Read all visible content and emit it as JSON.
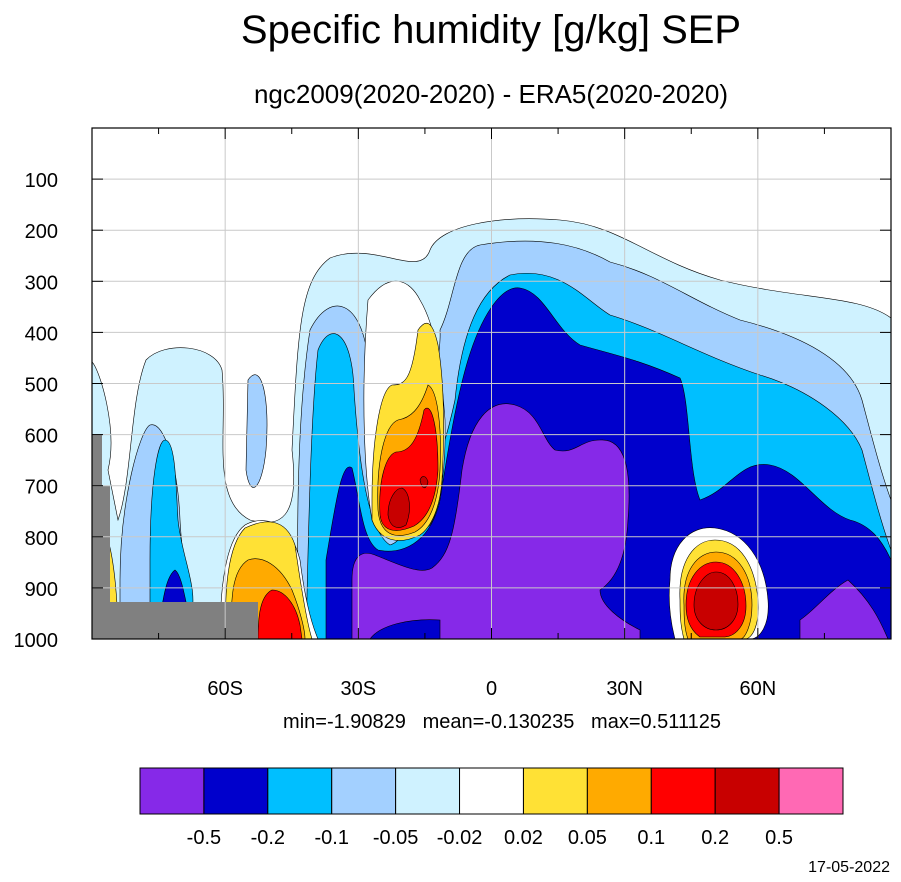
{
  "chart_data": {
    "type": "contour",
    "title": "Specific humidity [g/kg] SEP",
    "subtitle": "ngc2009(2020-2020) - ERA5(2020-2020)",
    "stats": "min=-1.90829   mean=-0.130235   max=0.511125",
    "date": "17-05-2022",
    "xlim": [
      -90,
      90
    ],
    "ylim": [
      1000,
      0
    ],
    "x_ticks": [
      {
        "value": -60,
        "label": "60S"
      },
      {
        "value": -30,
        "label": "30S"
      },
      {
        "value": 0,
        "label": "0"
      },
      {
        "value": 30,
        "label": "30N"
      },
      {
        "value": 60,
        "label": "60N"
      }
    ],
    "y_ticks": [
      {
        "value": 100,
        "label": "100"
      },
      {
        "value": 200,
        "label": "200"
      },
      {
        "value": 300,
        "label": "300"
      },
      {
        "value": 400,
        "label": "400"
      },
      {
        "value": 500,
        "label": "500"
      },
      {
        "value": 600,
        "label": "600"
      },
      {
        "value": 700,
        "label": "700"
      },
      {
        "value": 800,
        "label": "800"
      },
      {
        "value": 900,
        "label": "900"
      },
      {
        "value": 1000,
        "label": "1000"
      }
    ],
    "grid": true,
    "colorbar": {
      "colors": [
        "#8629e8",
        "#0000cc",
        "#00bfff",
        "#a3d0ff",
        "#cff2ff",
        "#ffffff",
        "#ffe135",
        "#ffaa00",
        "#ff0000",
        "#c80000",
        "#ff69b4"
      ],
      "labels": [
        "-0.5",
        "-0.2",
        "-0.1",
        "-0.05",
        "-0.02",
        "0.02",
        "0.05",
        "0.1",
        "0.2",
        "0.5"
      ]
    },
    "colors": {
      "missing": "#808080",
      "lt_-0.5": "#8629e8",
      "-0.5_-0.2": "#0000cc",
      "-0.2_-0.1": "#00bfff",
      "-0.1_-0.05": "#a3d0ff",
      "-0.05_-0.02": "#cff2ff",
      "-0.02_0.02": "#ffffff",
      "0.02_0.05": "#ffe135",
      "0.05_0.1": "#ffaa00",
      "0.1_0.2": "#ff0000",
      "0.2_0.5": "#c80000"
    }
  }
}
